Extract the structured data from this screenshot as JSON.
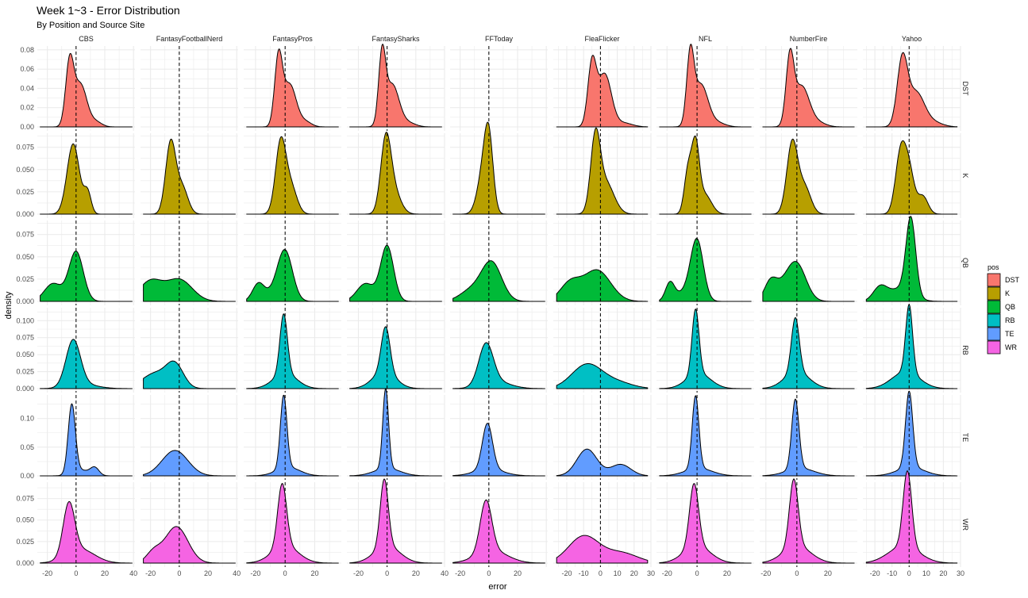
{
  "chart_data": {
    "type": "area",
    "kind": "density facet grid",
    "title": "Week 1~3 - Error Distribution",
    "subtitle": "By Position and Source Site",
    "xlabel": "error",
    "ylabel": "density",
    "grid": true,
    "reference_line": {
      "x": 0,
      "style": "dashed",
      "color": "#000000"
    },
    "columns": [
      "CBS",
      "FantasyFootballNerd",
      "FantasyPros",
      "FantasySharks",
      "FFToday",
      "FleaFlicker",
      "NFL",
      "NumberFire",
      "Yahoo"
    ],
    "rows": [
      "DST",
      "K",
      "QB",
      "RB",
      "TE",
      "WR"
    ],
    "x_ranges": [
      [
        -27,
        41
      ],
      [
        -27,
        41
      ],
      [
        -28,
        38
      ],
      [
        -28,
        40
      ],
      [
        -27,
        41
      ],
      [
        -28,
        30
      ],
      [
        -27,
        38
      ],
      [
        -24,
        39
      ],
      [
        -27,
        30
      ]
    ],
    "x_ticks": [
      [
        -20,
        0,
        20,
        40
      ],
      [
        -20,
        0,
        20,
        40
      ],
      [
        -20,
        0,
        20
      ],
      [
        -20,
        0,
        20,
        40
      ],
      [
        -20,
        0,
        20
      ],
      [
        -20,
        -10,
        0,
        10,
        20,
        30
      ],
      [
        -20,
        0,
        20
      ],
      [
        -20,
        0,
        20
      ],
      [
        -20,
        -10,
        0,
        10,
        20,
        30
      ]
    ],
    "y_ranges": [
      [
        0,
        0.084
      ],
      [
        0,
        0.0907
      ],
      [
        0,
        0.0907
      ],
      [
        0,
        0.119
      ],
      [
        0,
        0.141
      ],
      [
        0,
        0.094
      ]
    ],
    "y_ticks": [
      [
        "0.00",
        "0.02",
        "0.04",
        "0.06",
        "0.08"
      ],
      [
        "0.000",
        "0.025",
        "0.050",
        "0.075"
      ],
      [
        "0.000",
        "0.025",
        "0.050",
        "0.075"
      ],
      [
        "0.000",
        "0.025",
        "0.050",
        "0.075",
        "0.100"
      ],
      [
        "0.00",
        "0.05",
        "0.10"
      ],
      [
        "0.000",
        "0.025",
        "0.050",
        "0.075"
      ]
    ],
    "curve_encoding": "gaussian mixture components [weight, mean, sd] in error units",
    "curves": {
      "DST": {
        "CBS": [
          [
            0.45,
            -4.5,
            2.8
          ],
          [
            0.5,
            3,
            4.5
          ],
          [
            0.05,
            14,
            4
          ]
        ],
        "FantasyFootballNerd": [],
        "FantasyPros": [
          [
            0.45,
            -4.5,
            2.6
          ],
          [
            0.5,
            3,
            4.5
          ],
          [
            0.05,
            14,
            4
          ]
        ],
        "FantasySharks": [
          [
            0.42,
            -3.5,
            2.4
          ],
          [
            0.53,
            3.5,
            4.8
          ],
          [
            0.05,
            15,
            5
          ]
        ],
        "FFToday": [],
        "FleaFlicker": [
          [
            0.4,
            -5,
            2.5
          ],
          [
            0.55,
            2.5,
            4
          ],
          [
            0.05,
            14,
            5
          ]
        ],
        "NFL": [
          [
            0.42,
            -4.5,
            2.4
          ],
          [
            0.53,
            2.5,
            4.8
          ],
          [
            0.05,
            14,
            5
          ]
        ],
        "NumberFire": [
          [
            0.42,
            -4.5,
            2.5
          ],
          [
            0.53,
            3,
            5
          ],
          [
            0.05,
            14,
            5
          ]
        ],
        "Yahoo": [
          [
            0.5,
            -4,
            3
          ],
          [
            0.45,
            4,
            5
          ],
          [
            0.05,
            15,
            5
          ]
        ]
      },
      "K": {
        "CBS": [
          [
            0.85,
            -2,
            4.3
          ],
          [
            0.15,
            8,
            2.5
          ]
        ],
        "FantasyFootballNerd": [
          [
            0.7,
            -6,
            3.5
          ],
          [
            0.3,
            2,
            4
          ]
        ],
        "FantasyPros": [
          [
            0.7,
            -3,
            3.5
          ],
          [
            0.3,
            4,
            4
          ]
        ],
        "FantasySharks": [
          [
            0.65,
            -1,
            3.5
          ],
          [
            0.35,
            4,
            5
          ]
        ],
        "FFToday": [
          [
            0.55,
            0,
            3
          ],
          [
            0.45,
            -4,
            4
          ]
        ],
        "FleaFlicker": [
          [
            0.55,
            -3,
            2.8
          ],
          [
            0.45,
            3,
            5
          ]
        ],
        "NFL": [
          [
            0.3,
            -6,
            2.5
          ],
          [
            0.45,
            -1,
            2.5
          ],
          [
            0.25,
            5,
            4.5
          ]
        ],
        "NumberFire": [
          [
            0.7,
            -3,
            3.5
          ],
          [
            0.3,
            5,
            4
          ]
        ],
        "Yahoo": [
          [
            0.5,
            -5,
            3
          ],
          [
            0.35,
            0,
            3
          ],
          [
            0.15,
            8,
            3
          ]
        ]
      },
      "QB": {
        "CBS": [
          [
            0.7,
            0,
            5
          ],
          [
            0.3,
            -16,
            6
          ]
        ],
        "FantasyFootballNerd": [
          [
            0.45,
            -20,
            8
          ],
          [
            0.55,
            0,
            9
          ]
        ],
        "FantasyPros": [
          [
            0.7,
            0,
            5
          ],
          [
            0.2,
            -18,
            4
          ],
          [
            0.1,
            -8,
            5
          ]
        ],
        "FantasySharks": [
          [
            0.7,
            0,
            4.5
          ],
          [
            0.3,
            -15,
            6
          ]
        ],
        "FFToday": [
          [
            0.75,
            2,
            7
          ],
          [
            0.25,
            -12,
            8
          ]
        ],
        "FleaFlicker": [
          [
            0.7,
            -2,
            8
          ],
          [
            0.3,
            -18,
            6
          ]
        ],
        "NFL": [
          [
            0.7,
            0,
            4.2
          ],
          [
            0.15,
            -18,
            3
          ],
          [
            0.15,
            -8,
            6
          ]
        ],
        "NumberFire": [
          [
            0.6,
            0,
            6
          ],
          [
            0.2,
            -17,
            4
          ],
          [
            0.2,
            -9,
            6
          ]
        ],
        "Yahoo": [
          [
            0.6,
            1,
            2.8
          ],
          [
            0.15,
            -17,
            4
          ],
          [
            0.25,
            -5,
            7
          ]
        ]
      },
      "RB": {
        "CBS": [
          [
            0.85,
            -2,
            5
          ],
          [
            0.15,
            5,
            10
          ]
        ],
        "FantasyFootballNerd": [
          [
            0.5,
            -3,
            6
          ],
          [
            0.5,
            -17,
            9
          ]
        ],
        "FantasyPros": [
          [
            0.55,
            -1,
            2.5
          ],
          [
            0.45,
            0,
            8
          ]
        ],
        "FantasySharks": [
          [
            0.5,
            -1,
            3
          ],
          [
            0.5,
            -2,
            8
          ]
        ],
        "FFToday": [
          [
            0.75,
            -2,
            5
          ],
          [
            0.25,
            5,
            10
          ]
        ],
        "FleaFlicker": [
          [
            0.8,
            -8,
            9
          ],
          [
            0.2,
            10,
            9
          ]
        ],
        "NFL": [
          [
            0.55,
            -1,
            2.3
          ],
          [
            0.45,
            1,
            8
          ]
        ],
        "NumberFire": [
          [
            0.5,
            -1,
            2.5
          ],
          [
            0.5,
            0,
            8
          ]
        ],
        "Yahoo": [
          [
            0.5,
            0,
            2
          ],
          [
            0.5,
            -2,
            8
          ]
        ]
      },
      "TE": {
        "CBS": [
          [
            0.75,
            -3,
            2.5
          ],
          [
            0.15,
            3,
            6
          ],
          [
            0.1,
            13,
            3
          ]
        ],
        "FantasyFootballNerd": [
          [
            1,
            -3,
            9
          ]
        ],
        "FantasyPros": [
          [
            0.7,
            -1,
            2.2
          ],
          [
            0.3,
            2,
            8
          ]
        ],
        "FantasySharks": [
          [
            0.7,
            -1,
            2
          ],
          [
            0.3,
            0,
            9
          ]
        ],
        "FFToday": [
          [
            0.7,
            -1,
            3.5
          ],
          [
            0.3,
            0,
            10
          ]
        ],
        "FleaFlicker": [
          [
            0.7,
            -8,
            6
          ],
          [
            0.3,
            12,
            6
          ]
        ],
        "NFL": [
          [
            0.7,
            -1,
            2.2
          ],
          [
            0.3,
            1,
            9
          ]
        ],
        "NumberFire": [
          [
            0.7,
            -1,
            2.3
          ],
          [
            0.3,
            2,
            9
          ]
        ],
        "Yahoo": [
          [
            0.7,
            0,
            2.1
          ],
          [
            0.3,
            1,
            8
          ]
        ]
      },
      "WR": {
        "CBS": [
          [
            0.6,
            -5,
            4
          ],
          [
            0.4,
            3,
            10
          ]
        ],
        "FantasyFootballNerd": [
          [
            0.85,
            -2,
            8
          ],
          [
            0.15,
            -18,
            5
          ]
        ],
        "FantasyPros": [
          [
            0.55,
            -2,
            3
          ],
          [
            0.45,
            0,
            9
          ]
        ],
        "FantasySharks": [
          [
            0.55,
            -2,
            2.8
          ],
          [
            0.45,
            0,
            9
          ]
        ],
        "FFToday": [
          [
            0.6,
            -2,
            4
          ],
          [
            0.4,
            2,
            11
          ]
        ],
        "FleaFlicker": [
          [
            0.7,
            -10,
            9
          ],
          [
            0.3,
            12,
            10
          ]
        ],
        "NFL": [
          [
            0.55,
            -2,
            3
          ],
          [
            0.45,
            0,
            9
          ]
        ],
        "NumberFire": [
          [
            0.55,
            -2,
            2.8
          ],
          [
            0.45,
            0,
            9
          ]
        ],
        "Yahoo": [
          [
            0.55,
            -1,
            2.5
          ],
          [
            0.45,
            -3,
            9
          ]
        ]
      }
    },
    "legend": {
      "title": "pos",
      "placement": "right",
      "items": [
        {
          "label": "DST",
          "color": "#F8766D"
        },
        {
          "label": "K",
          "color": "#B79F00"
        },
        {
          "label": "QB",
          "color": "#00BA38"
        },
        {
          "label": "RB",
          "color": "#00BFC4"
        },
        {
          "label": "TE",
          "color": "#619CFF"
        },
        {
          "label": "WR",
          "color": "#F564E3"
        }
      ]
    }
  }
}
